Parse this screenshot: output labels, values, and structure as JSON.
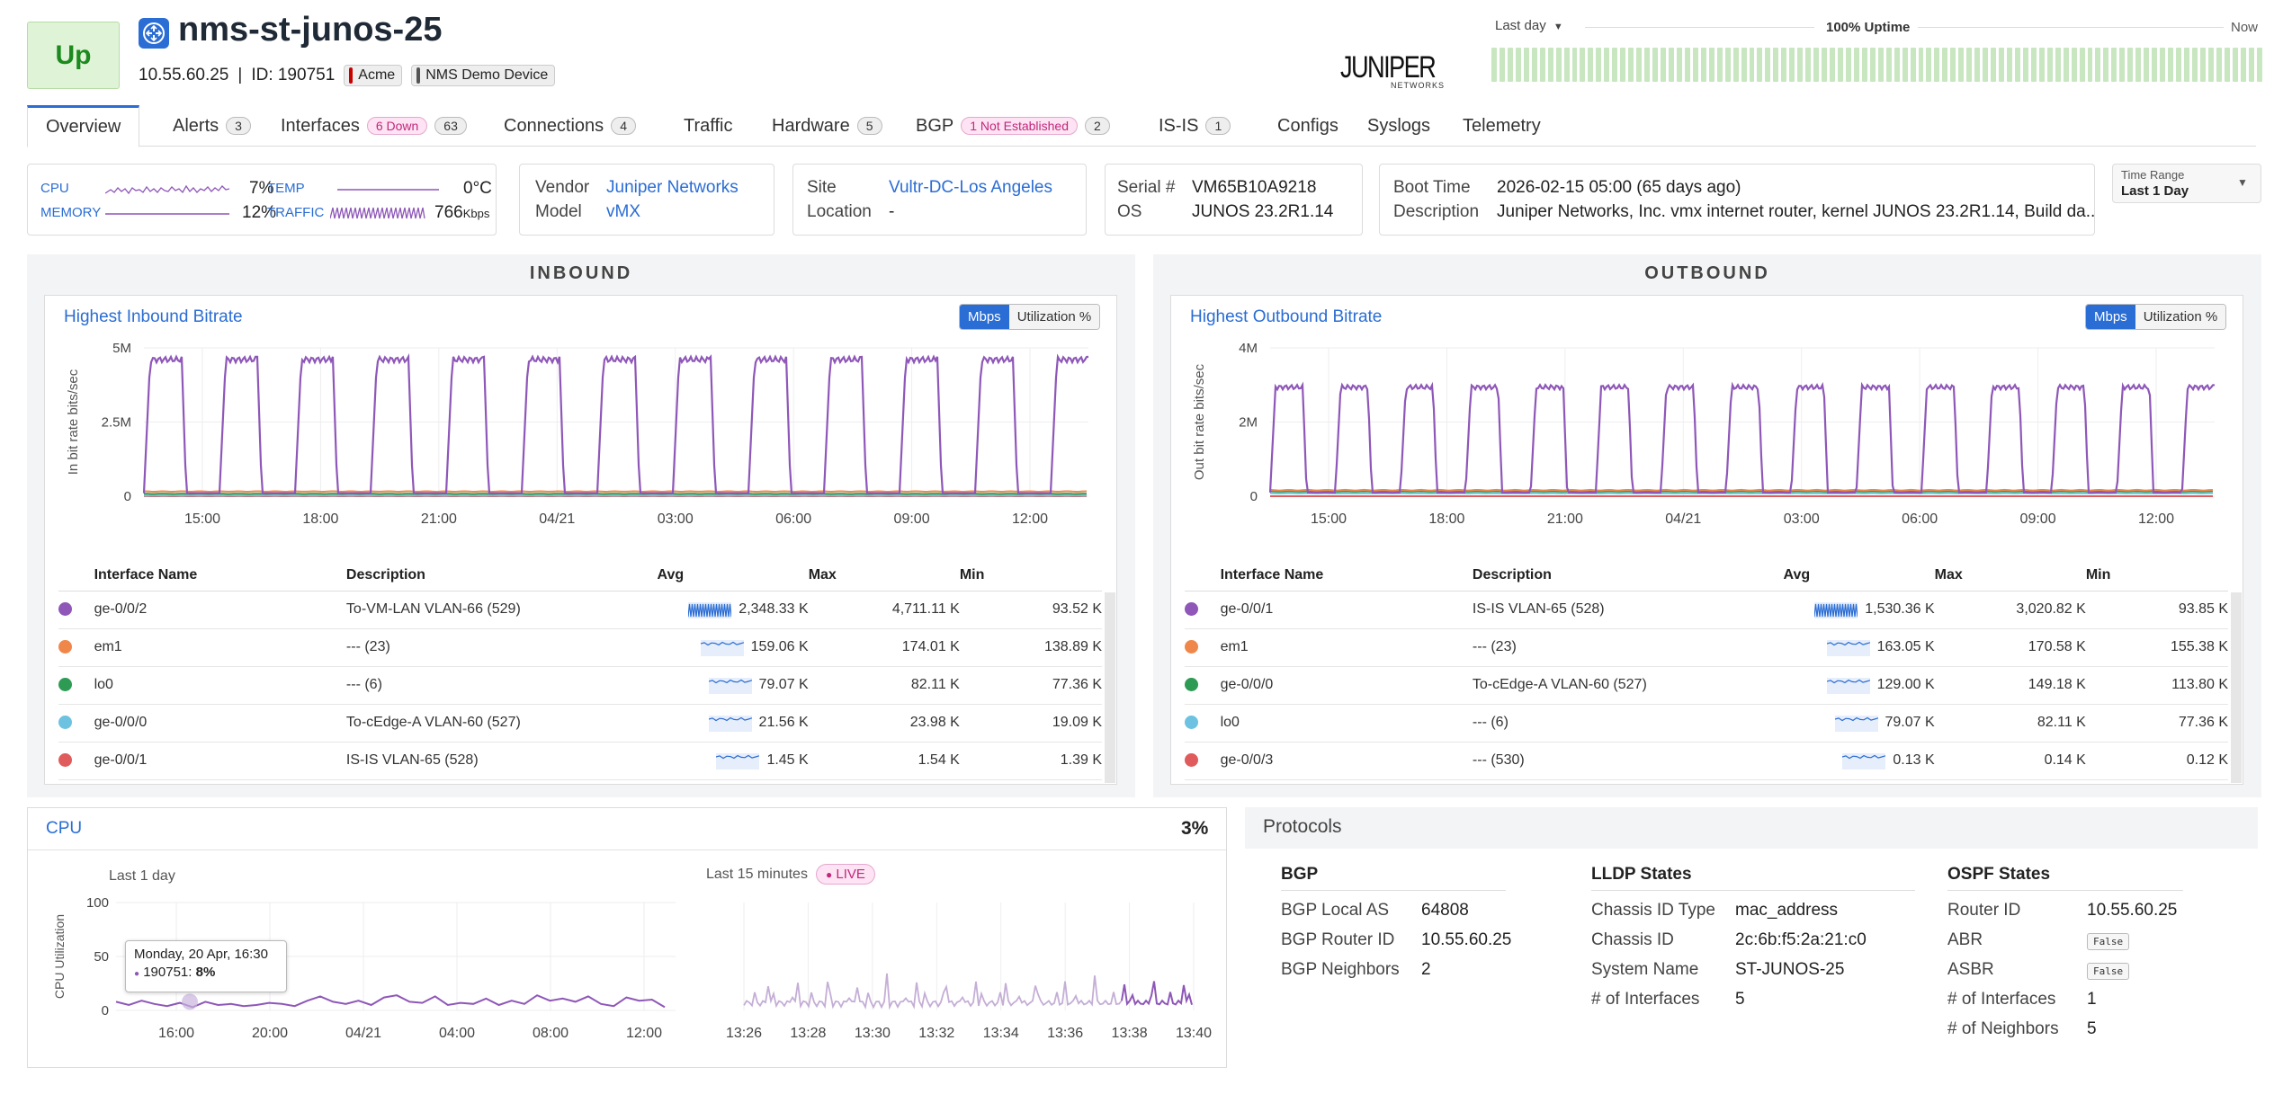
{
  "device": {
    "status": "Up",
    "name": "nms-st-junos-25",
    "ip": "10.55.60.25",
    "id_label": "ID: 190751",
    "tags": [
      "Acme",
      "NMS Demo Device"
    ]
  },
  "vendor_logo": {
    "word": "JUNIPER",
    "sub": "NETWORKS"
  },
  "uptime": {
    "range_label": "Last day",
    "uptime_label": "100% Uptime",
    "end_label": "Now",
    "uptime_fraction": 1.0,
    "bar_color": "#c8e6c0"
  },
  "tabs": [
    {
      "label": "Overview",
      "active": true
    },
    {
      "label": "Alerts",
      "count": "3"
    },
    {
      "label": "Interfaces",
      "alert": "6 Down",
      "count": "63"
    },
    {
      "label": "Connections",
      "count": "4"
    },
    {
      "label": "Traffic"
    },
    {
      "label": "Hardware",
      "count": "5"
    },
    {
      "label": "BGP",
      "alert": "1 Not Established",
      "count": "2"
    },
    {
      "label": "IS-IS",
      "count": "1"
    },
    {
      "label": "Configs"
    },
    {
      "label": "Syslogs"
    },
    {
      "label": "Telemetry"
    }
  ],
  "summary": {
    "cpu_label": "CPU",
    "cpu_value": "7%",
    "temp_label": "TEMP",
    "temp_value": "0°C",
    "memory_label": "MEMORY",
    "memory_value": "12%",
    "traffic_label": "TRAFFIC",
    "traffic_value": "766",
    "traffic_unit": "Kbps",
    "vendor_label": "Vendor",
    "vendor_value": "Juniper Networks",
    "model_label": "Model",
    "model_value": "vMX",
    "site_label": "Site",
    "site_value": "Vultr-DC-Los Angeles",
    "location_label": "Location",
    "location_value": "-",
    "serial_label": "Serial #",
    "serial_value": "VM65B10A9218",
    "os_label": "OS",
    "os_value": "JUNOS 23.2R1.14",
    "boot_label": "Boot Time",
    "boot_value": "2026-02-15 05:00 (65 days ago)",
    "desc_label": "Description",
    "desc_value": "Juniper Networks, Inc. vmx internet router, kernel JUNOS 23.2R1.14, Build da...",
    "time_range_label": "Time Range",
    "time_range_value": "Last 1 Day"
  },
  "inbound": {
    "section": "INBOUND",
    "title": "Highest Inbound Bitrate",
    "toggle_on": "Mbps",
    "toggle_off": "Utilization %",
    "cols": [
      "Interface Name",
      "Description",
      "Avg",
      "Max",
      "Min"
    ],
    "rows": [
      {
        "name": "ge-0/0/2",
        "desc": "To-VM-LAN VLAN-66 (529)",
        "avg": "2,348.33 K",
        "max": "4,711.11 K",
        "min": "93.52 K",
        "color": "#8e57b8"
      },
      {
        "name": "em1",
        "desc": "--- (23)",
        "avg": "159.06 K",
        "max": "174.01 K",
        "min": "138.89 K",
        "color": "#f0874a"
      },
      {
        "name": "lo0",
        "desc": "--- (6)",
        "avg": "79.07 K",
        "max": "82.11 K",
        "min": "77.36 K",
        "color": "#2e9b55"
      },
      {
        "name": "ge-0/0/0",
        "desc": "To-cEdge-A VLAN-60 (527)",
        "avg": "21.56 K",
        "max": "23.98 K",
        "min": "19.09 K",
        "color": "#6cc2e0"
      },
      {
        "name": "ge-0/0/1",
        "desc": "IS-IS VLAN-65 (528)",
        "avg": "1.45 K",
        "max": "1.54 K",
        "min": "1.39 K",
        "color": "#e05b5b"
      }
    ]
  },
  "outbound": {
    "section": "OUTBOUND",
    "title": "Highest Outbound Bitrate",
    "toggle_on": "Mbps",
    "toggle_off": "Utilization %",
    "cols": [
      "Interface Name",
      "Description",
      "Avg",
      "Max",
      "Min"
    ],
    "rows": [
      {
        "name": "ge-0/0/1",
        "desc": "IS-IS VLAN-65 (528)",
        "avg": "1,530.36 K",
        "max": "3,020.82 K",
        "min": "93.85 K",
        "color": "#8e57b8"
      },
      {
        "name": "em1",
        "desc": "--- (23)",
        "avg": "163.05 K",
        "max": "170.58 K",
        "min": "155.38 K",
        "color": "#f0874a"
      },
      {
        "name": "ge-0/0/0",
        "desc": "To-cEdge-A VLAN-60 (527)",
        "avg": "129.00 K",
        "max": "149.18 K",
        "min": "113.80 K",
        "color": "#2e9b55"
      },
      {
        "name": "lo0",
        "desc": "--- (6)",
        "avg": "79.07 K",
        "max": "82.11 K",
        "min": "77.36 K",
        "color": "#6cc2e0"
      },
      {
        "name": "ge-0/0/3",
        "desc": "--- (530)",
        "avg": "0.13 K",
        "max": "0.14 K",
        "min": "0.12 K",
        "color": "#e05b5b"
      }
    ]
  },
  "chart_data": [
    {
      "type": "line",
      "ylabel": "In bit rate bits/sec",
      "yticks": [
        "5M",
        "2.5M",
        "0"
      ],
      "ylim": [
        0,
        5000000
      ],
      "xticks": [
        "15:00",
        "18:00",
        "21:00",
        "04/21",
        "03:00",
        "06:00",
        "09:00",
        "12:00"
      ],
      "series": [
        {
          "pattern": "square-wave",
          "high": 4700000,
          "low": 100000,
          "periods": 12.5,
          "color": "#8e57b8"
        },
        {
          "pattern": "flat",
          "value": 160000,
          "color": "#f0874a"
        },
        {
          "pattern": "flat",
          "value": 80000,
          "color": "#2e9b55"
        },
        {
          "pattern": "flat",
          "value": 22000,
          "color": "#6cc2e0"
        },
        {
          "pattern": "flat",
          "value": 1500,
          "color": "#e05b5b"
        }
      ]
    },
    {
      "type": "line",
      "ylabel": "Out bit rate bits/sec",
      "yticks": [
        "4M",
        "2M",
        "0"
      ],
      "ylim": [
        0,
        4000000
      ],
      "xticks": [
        "15:00",
        "18:00",
        "21:00",
        "04/21",
        "03:00",
        "06:00",
        "09:00",
        "12:00"
      ],
      "series": [
        {
          "pattern": "square-wave",
          "high": 3000000,
          "low": 100000,
          "periods": 14.5,
          "color": "#8e57b8"
        },
        {
          "pattern": "flat",
          "value": 163000,
          "color": "#f0874a"
        },
        {
          "pattern": "flat",
          "value": 129000,
          "color": "#2e9b55"
        },
        {
          "pattern": "flat",
          "value": 79000,
          "color": "#6cc2e0"
        },
        {
          "pattern": "flat",
          "value": 130,
          "color": "#e05b5b"
        }
      ]
    },
    {
      "type": "line",
      "title": "CPU",
      "ylabel": "CPU Utilization",
      "ylim": [
        0,
        100
      ],
      "yticks": [
        "100",
        "50",
        "0"
      ],
      "xticks": [
        "16:00",
        "20:00",
        "04/21",
        "04:00",
        "08:00",
        "12:00"
      ],
      "series": [
        {
          "color": "#8e57b8",
          "values": [
            8,
            5,
            9,
            6,
            4,
            7,
            3,
            8,
            5,
            6,
            4,
            5,
            7,
            6,
            4,
            9,
            13,
            8,
            6,
            9,
            5,
            12,
            14,
            8,
            7,
            13,
            5,
            7,
            6,
            11,
            5,
            9,
            6,
            14,
            9,
            11,
            8,
            13,
            6,
            4,
            12,
            9,
            10,
            3
          ]
        }
      ]
    },
    {
      "type": "line",
      "xticks": [
        "13:26",
        "13:28",
        "13:30",
        "13:32",
        "13:34",
        "13:36",
        "13:38",
        "13:40"
      ],
      "ylim": [
        0,
        100
      ],
      "series": [
        {
          "color": "#8e57b8",
          "pattern": "noisy",
          "base": 5,
          "max": 27
        }
      ]
    }
  ],
  "cpu": {
    "title": "CPU",
    "value": "3%",
    "left_label": "Last 1 day",
    "right_label": "Last 15 minutes",
    "live": "LIVE",
    "tooltip_date": "Monday, 20 Apr, 16:30",
    "tooltip_id": "190751:",
    "tooltip_val": "8%"
  },
  "protocols": {
    "title": "Protocols",
    "bgp": {
      "head": "BGP",
      "rows": [
        [
          "BGP Local AS",
          "64808"
        ],
        [
          "BGP Router ID",
          "10.55.60.25"
        ],
        [
          "BGP Neighbors",
          "2"
        ]
      ]
    },
    "lldp": {
      "head": "LLDP States",
      "rows": [
        [
          "Chassis ID Type",
          "mac_address"
        ],
        [
          "Chassis ID",
          "2c:6b:f5:2a:21:c0"
        ],
        [
          "System Name",
          "ST-JUNOS-25"
        ],
        [
          "# of Interfaces",
          "5"
        ]
      ]
    },
    "ospf": {
      "head": "OSPF States",
      "rows": [
        [
          "Router ID",
          "10.55.60.25"
        ],
        [
          "ABR",
          "False"
        ],
        [
          "ASBR",
          "False"
        ],
        [
          "# of Interfaces",
          "1"
        ],
        [
          "# of Neighbors",
          "5"
        ]
      ]
    }
  }
}
